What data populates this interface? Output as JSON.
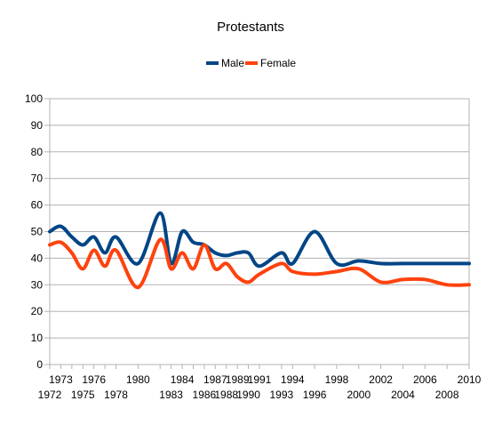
{
  "chart_data": {
    "type": "line",
    "title": "Protestants",
    "xlabel": "",
    "ylabel": "",
    "ylim": [
      0,
      100
    ],
    "yticks": [
      0,
      10,
      20,
      30,
      40,
      50,
      60,
      70,
      80,
      90,
      100
    ],
    "grid": true,
    "legend_position": "top",
    "categories": [
      "1972",
      "1973",
      "1974",
      "1975",
      "1976",
      "1977",
      "1978",
      "1980",
      "1982",
      "1983",
      "1984",
      "1985",
      "1986",
      "1987",
      "1988",
      "1989",
      "1990",
      "1991",
      "1993",
      "1994",
      "1996",
      "1998",
      "2000",
      "2002",
      "2004",
      "2006",
      "2008",
      "2010"
    ],
    "x_tick_labels": {
      "upper": [
        "1973",
        "1976",
        "1980",
        "1984",
        "1987",
        "1989",
        "1991",
        "1994",
        "1998",
        "2002",
        "2006",
        "2010"
      ],
      "lower": [
        "1972",
        "1975",
        "1978",
        "1983",
        "1986",
        "1988",
        "1990",
        "1993",
        "1996",
        "2000",
        "2004",
        "2008"
      ]
    },
    "series": [
      {
        "name": "Male",
        "color": "#004586",
        "values": [
          50,
          52,
          48,
          45,
          48,
          42,
          48,
          38,
          57,
          38,
          50,
          46,
          45,
          42,
          41,
          42,
          42,
          37,
          42,
          38,
          50,
          38,
          39,
          38,
          38,
          38,
          38,
          38
        ]
      },
      {
        "name": "Female",
        "color": "#ff420e",
        "values": [
          45,
          46,
          42,
          36,
          43,
          37,
          43,
          29,
          47,
          36,
          42,
          36,
          45,
          36,
          38,
          33,
          31,
          34,
          38,
          35,
          34,
          35,
          36,
          31,
          32,
          32,
          30,
          30
        ]
      }
    ]
  }
}
